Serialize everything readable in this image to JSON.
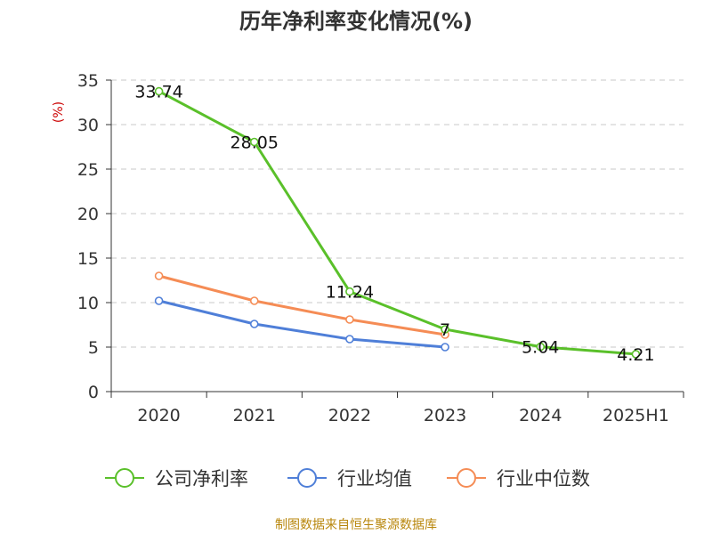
{
  "chart_data": {
    "type": "line",
    "title": "历年净利率变化情况(%)",
    "ylabel": "(%)",
    "xlabel": "",
    "categories": [
      "2020",
      "2021",
      "2022",
      "2023",
      "2024",
      "2025H1"
    ],
    "ylim": [
      0,
      35
    ],
    "yticks": [
      0,
      5,
      10,
      15,
      20,
      25,
      30,
      35
    ],
    "grid": "horizontal dashed",
    "legend_position": "bottom",
    "series": [
      {
        "name": "公司净利率",
        "color": "#5ac02a",
        "values": [
          33.74,
          28.05,
          11.24,
          7,
          5.04,
          4.21
        ],
        "labels": [
          "33.74",
          "28.05",
          "11.24",
          "7",
          "5.04",
          "4.21"
        ]
      },
      {
        "name": "行业均值",
        "color": "#4f7fd8",
        "values": [
          10.2,
          7.6,
          5.9,
          5.0,
          null,
          null
        ]
      },
      {
        "name": "行业中位数",
        "color": "#f58c55",
        "values": [
          13.0,
          10.2,
          8.1,
          6.4,
          null,
          null
        ]
      }
    ]
  },
  "footer": {
    "source": "制图数据来自恒生聚源数据库"
  }
}
